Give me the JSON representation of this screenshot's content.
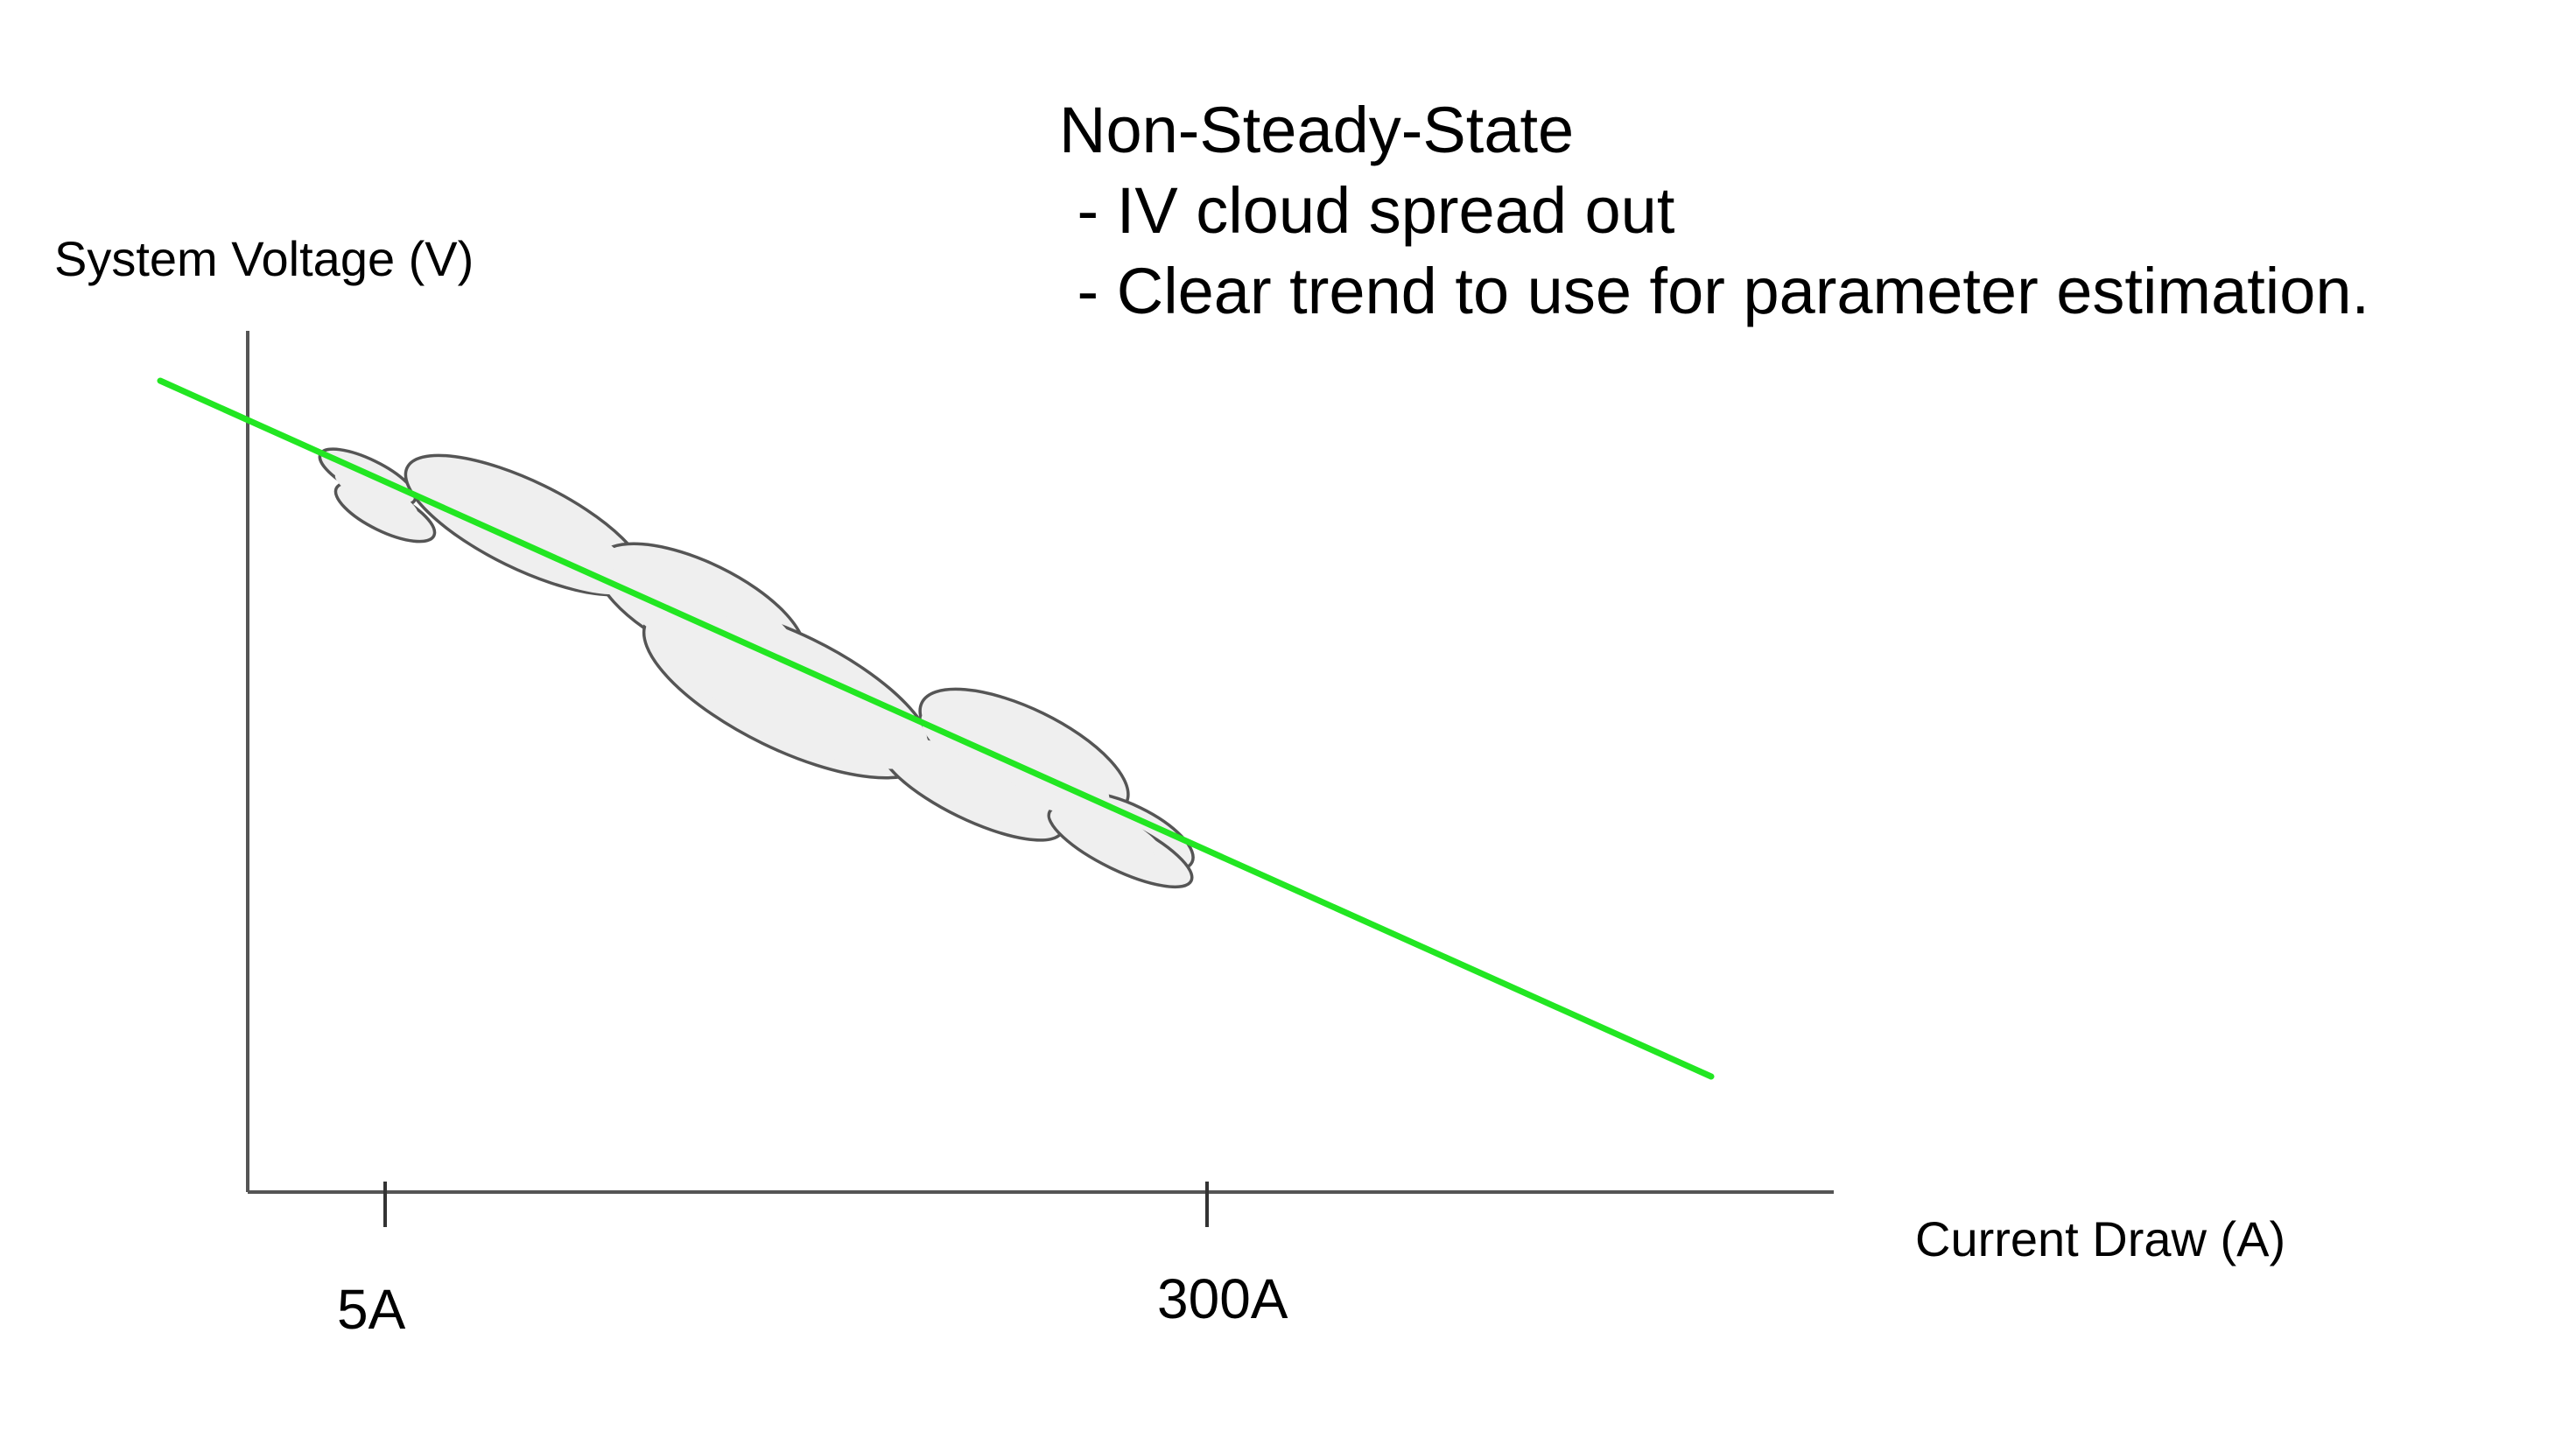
{
  "title": "Non-Steady-State",
  "bullets": [
    " - IV cloud spread out",
    " - Clear trend to use for parameter estimation."
  ],
  "axes": {
    "y_label": "System Voltage (V)",
    "x_label": "Current Draw (A)"
  },
  "ticks": [
    "5A",
    "300A"
  ],
  "colors": {
    "trend_line": "#22e622",
    "cloud_fill": "#efefef",
    "cloud_outline": "#555555",
    "axis": "#555555"
  }
}
